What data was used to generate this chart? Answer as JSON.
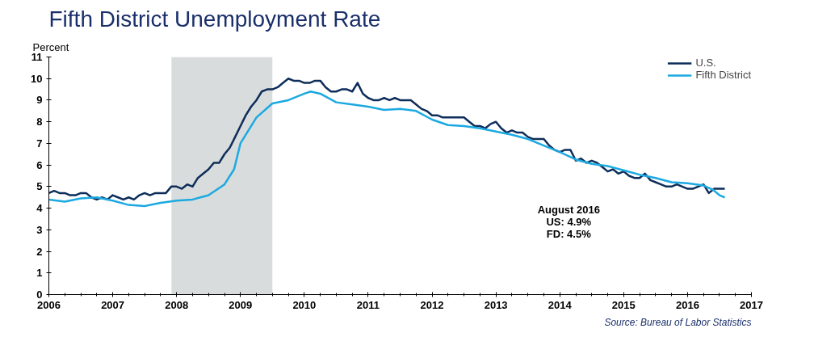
{
  "chart_data": {
    "type": "line",
    "title": "Fifth District Unemployment Rate",
    "ylabel": "Percent",
    "xlim": [
      2006,
      2017
    ],
    "xticks": [
      2006,
      2007,
      2008,
      2009,
      2010,
      2011,
      2012,
      2013,
      2014,
      2015,
      2016,
      2017
    ],
    "ylim": [
      0,
      11
    ],
    "yticks": [
      0,
      1,
      2,
      3,
      4,
      5,
      6,
      7,
      8,
      9,
      10,
      11
    ],
    "grid": false,
    "legend": "top right",
    "line_style": "solid",
    "marker": "none",
    "bands": [
      {
        "axis": "x",
        "from": 2007.92,
        "to": 2009.5,
        "color": "#d9dcdc"
      }
    ],
    "series": [
      {
        "name": "U.S.",
        "color": "#0d2d5a",
        "x": [
          2006.0,
          2006.083,
          2006.167,
          2006.25,
          2006.333,
          2006.417,
          2006.5,
          2006.583,
          2006.667,
          2006.75,
          2006.833,
          2006.917,
          2007.0,
          2007.083,
          2007.167,
          2007.25,
          2007.333,
          2007.417,
          2007.5,
          2007.583,
          2007.667,
          2007.75,
          2007.833,
          2007.917,
          2008.0,
          2008.083,
          2008.167,
          2008.25,
          2008.333,
          2008.417,
          2008.5,
          2008.583,
          2008.667,
          2008.75,
          2008.833,
          2008.917,
          2009.0,
          2009.083,
          2009.167,
          2009.25,
          2009.333,
          2009.417,
          2009.5,
          2009.583,
          2009.667,
          2009.75,
          2009.833,
          2009.917,
          2010.0,
          2010.083,
          2010.167,
          2010.25,
          2010.333,
          2010.417,
          2010.5,
          2010.583,
          2010.667,
          2010.75,
          2010.833,
          2010.917,
          2011.0,
          2011.083,
          2011.167,
          2011.25,
          2011.333,
          2011.417,
          2011.5,
          2011.583,
          2011.667,
          2011.75,
          2011.833,
          2011.917,
          2012.0,
          2012.083,
          2012.167,
          2012.25,
          2012.333,
          2012.417,
          2012.5,
          2012.583,
          2012.667,
          2012.75,
          2012.833,
          2012.917,
          2013.0,
          2013.083,
          2013.167,
          2013.25,
          2013.333,
          2013.417,
          2013.5,
          2013.583,
          2013.667,
          2013.75,
          2013.833,
          2013.917,
          2014.0,
          2014.083,
          2014.167,
          2014.25,
          2014.333,
          2014.417,
          2014.5,
          2014.583,
          2014.667,
          2014.75,
          2014.833,
          2014.917,
          2015.0,
          2015.083,
          2015.167,
          2015.25,
          2015.333,
          2015.417,
          2015.5,
          2015.583,
          2015.667,
          2015.75,
          2015.833,
          2015.917,
          2016.0,
          2016.083,
          2016.167,
          2016.25,
          2016.333,
          2016.417,
          2016.5,
          2016.583
        ],
        "values": [
          4.7,
          4.8,
          4.7,
          4.7,
          4.6,
          4.6,
          4.7,
          4.7,
          4.5,
          4.4,
          4.5,
          4.4,
          4.6,
          4.5,
          4.4,
          4.5,
          4.4,
          4.6,
          4.7,
          4.6,
          4.7,
          4.7,
          4.7,
          5.0,
          5.0,
          4.9,
          5.1,
          5.0,
          5.4,
          5.6,
          5.8,
          6.1,
          6.1,
          6.5,
          6.8,
          7.3,
          7.8,
          8.3,
          8.7,
          9.0,
          9.4,
          9.5,
          9.5,
          9.6,
          9.8,
          10.0,
          9.9,
          9.9,
          9.8,
          9.8,
          9.9,
          9.9,
          9.6,
          9.4,
          9.4,
          9.5,
          9.5,
          9.4,
          9.8,
          9.3,
          9.1,
          9.0,
          9.0,
          9.1,
          9.0,
          9.1,
          9.0,
          9.0,
          9.0,
          8.8,
          8.6,
          8.5,
          8.3,
          8.3,
          8.2,
          8.2,
          8.2,
          8.2,
          8.2,
          8.0,
          7.8,
          7.8,
          7.7,
          7.9,
          8.0,
          7.7,
          7.5,
          7.6,
          7.5,
          7.5,
          7.3,
          7.2,
          7.2,
          7.2,
          6.9,
          6.7,
          6.6,
          6.7,
          6.7,
          6.2,
          6.3,
          6.1,
          6.2,
          6.1,
          5.9,
          5.7,
          5.8,
          5.6,
          5.7,
          5.5,
          5.4,
          5.4,
          5.6,
          5.3,
          5.2,
          5.1,
          5.0,
          5.0,
          5.1,
          5.0,
          4.9,
          4.9,
          5.0,
          5.1,
          4.7,
          4.9,
          4.9,
          4.9
        ]
      },
      {
        "name": "Fifth District",
        "color": "#1ba9e1",
        "x": [
          2006.0,
          2006.25,
          2006.5,
          2006.75,
          2007.0,
          2007.25,
          2007.5,
          2007.75,
          2008.0,
          2008.25,
          2008.5,
          2008.75,
          2008.9,
          2009.0,
          2009.25,
          2009.5,
          2009.75,
          2010.0,
          2010.1,
          2010.25,
          2010.5,
          2010.75,
          2011.0,
          2011.25,
          2011.5,
          2011.75,
          2012.0,
          2012.25,
          2012.5,
          2012.75,
          2013.0,
          2013.25,
          2013.5,
          2013.75,
          2014.0,
          2014.25,
          2014.5,
          2014.75,
          2015.0,
          2015.25,
          2015.5,
          2015.75,
          2016.0,
          2016.25,
          2016.4,
          2016.5,
          2016.583
        ],
        "values": [
          4.4,
          4.3,
          4.45,
          4.5,
          4.35,
          4.15,
          4.1,
          4.25,
          4.35,
          4.4,
          4.6,
          5.1,
          5.8,
          7.0,
          8.2,
          8.85,
          9.0,
          9.3,
          9.4,
          9.3,
          8.9,
          8.8,
          8.7,
          8.55,
          8.6,
          8.5,
          8.1,
          7.85,
          7.8,
          7.7,
          7.55,
          7.4,
          7.2,
          6.9,
          6.6,
          6.25,
          6.05,
          5.95,
          5.75,
          5.55,
          5.4,
          5.2,
          5.15,
          5.05,
          4.85,
          4.6,
          4.5
        ]
      }
    ],
    "annotations": [
      "August 2016",
      "US: 4.9%",
      "FD: 4.5%",
      "Source: Bureau of Labor Statistics"
    ]
  }
}
